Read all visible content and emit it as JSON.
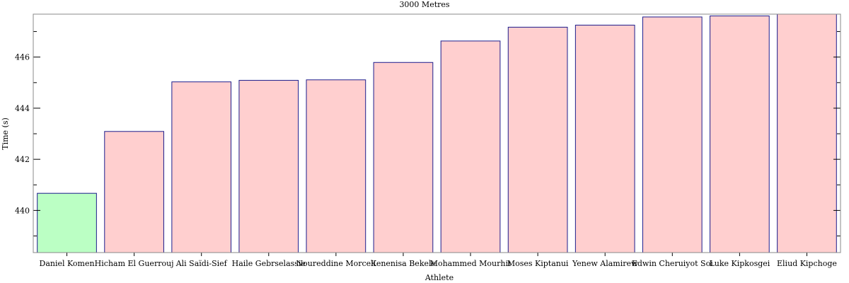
{
  "chart_data": {
    "type": "bar",
    "title": "3000 Metres",
    "xlabel": "Athlete",
    "ylabel": "Time (s)",
    "categories": [
      "Daniel Komen",
      "Hicham El Guerrouj",
      "Ali Saïdi-Sief",
      "Haile Gebrselassie",
      "Noureddine Morceli",
      "Kenenisa Bekele",
      "Mohammed Mourhit",
      "Moses Kiptanui",
      "Yenew Alamirew",
      "Edwin Cheruiyot Soi",
      "Luke Kipkosgei",
      "Eliud Kipchoge"
    ],
    "values": [
      440.67,
      443.09,
      445.03,
      445.09,
      445.11,
      445.79,
      446.63,
      447.17,
      447.25,
      447.57,
      447.61,
      447.7
    ],
    "highlight_index": 0,
    "colors": {
      "highlight": "#bbffc4",
      "default": "#ffcfcf",
      "edge": "#1c1c8c"
    },
    "ylim": [
      438.35,
      447.68
    ],
    "yticks": [
      440,
      442,
      444,
      446
    ],
    "grid": false
  }
}
